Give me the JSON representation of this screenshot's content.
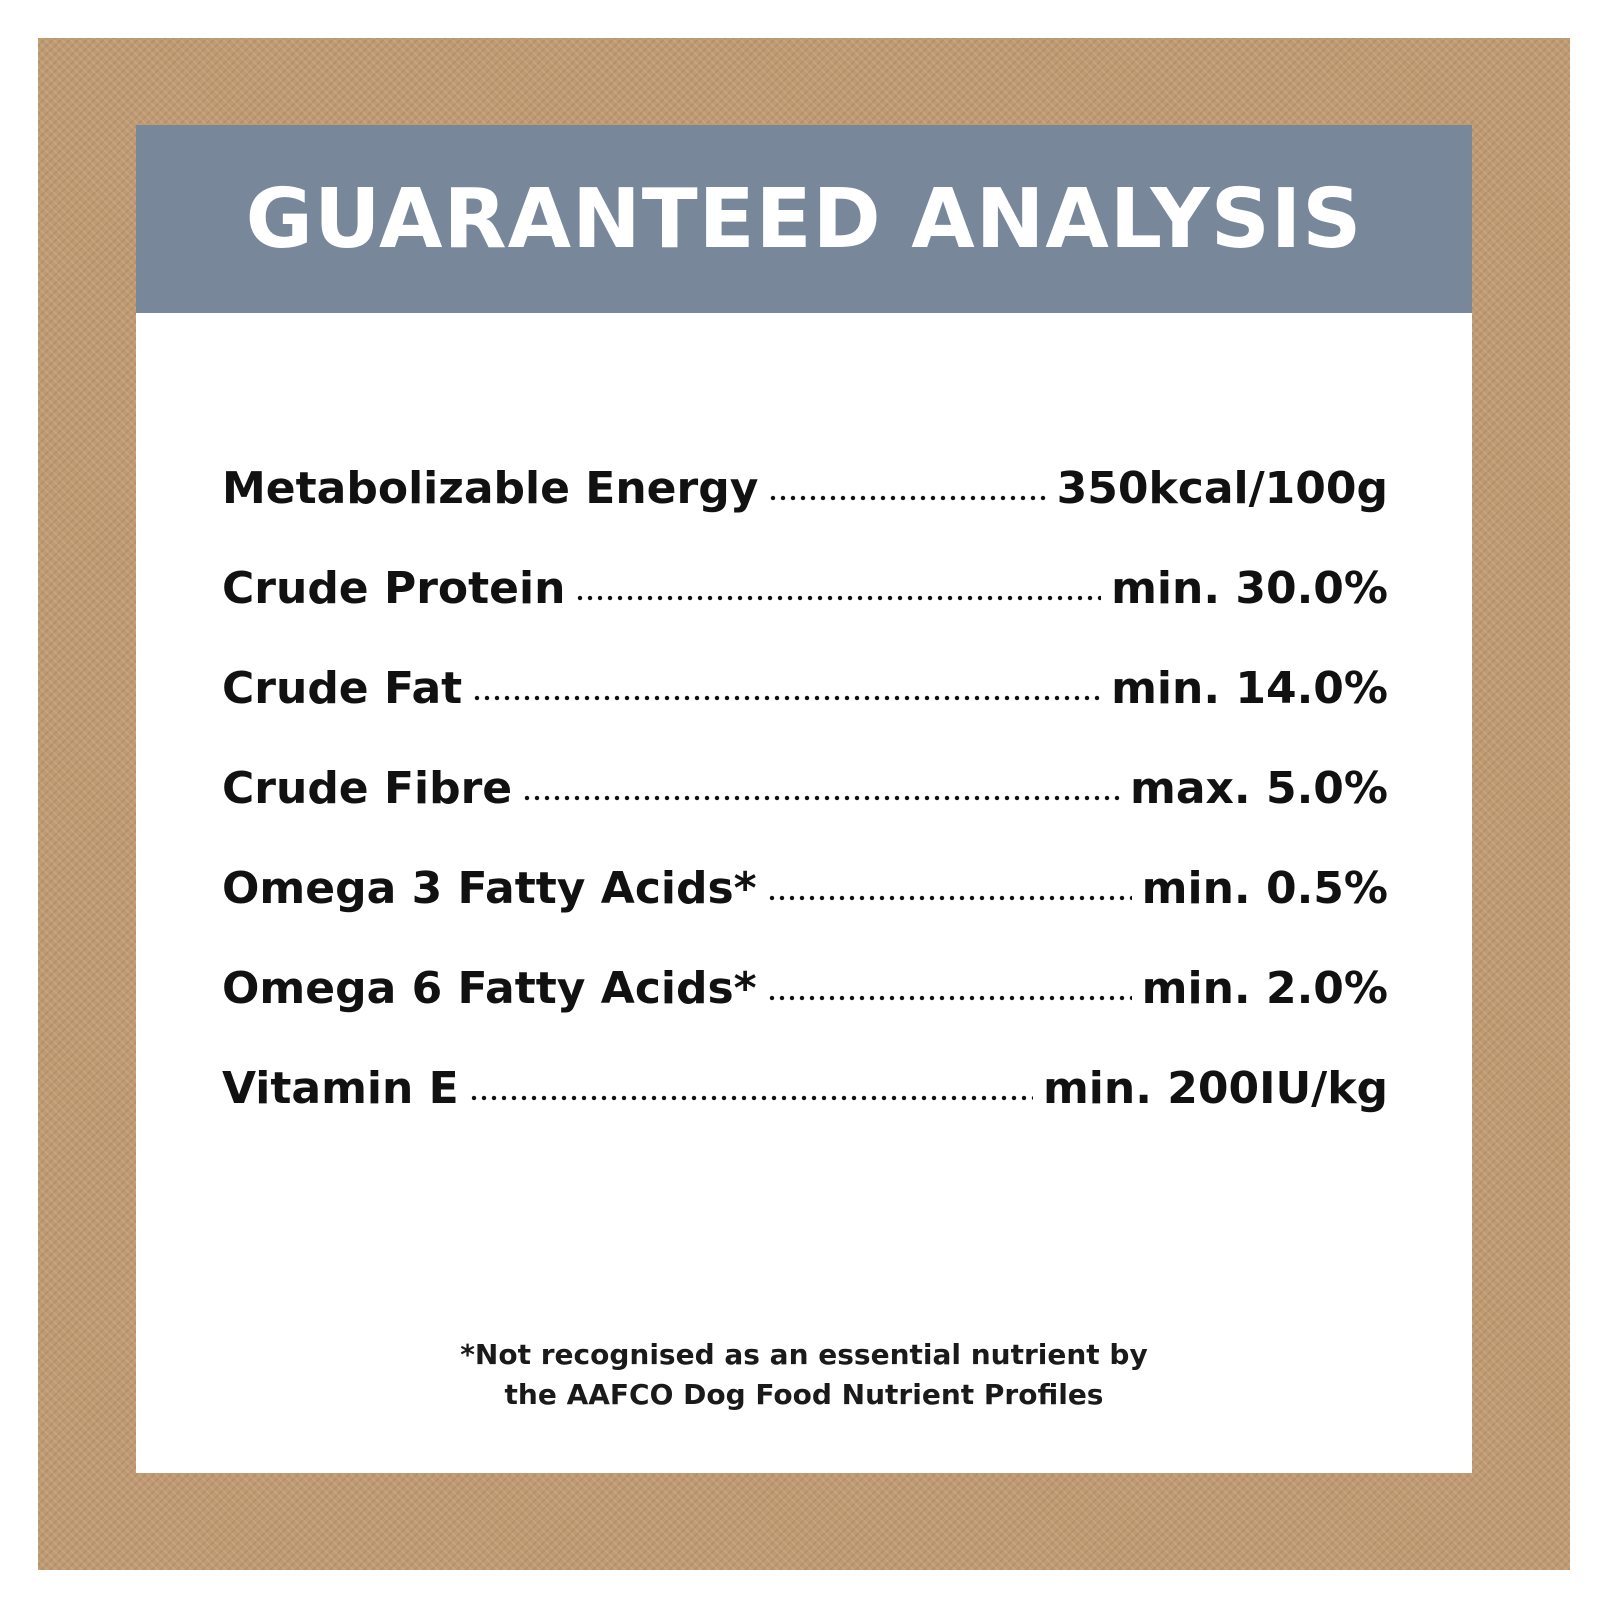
{
  "header": {
    "title": "GUARANTEED ANALYSIS"
  },
  "analysis": {
    "rows": [
      {
        "label": "Metabolizable Energy",
        "value": "350kcal/100g"
      },
      {
        "label": "Crude Protein",
        "value": "min. 30.0%"
      },
      {
        "label": "Crude Fat",
        "value": "min. 14.0%"
      },
      {
        "label": "Crude Fibre",
        "value": "max. 5.0%"
      },
      {
        "label": "Omega 3 Fatty Acids*",
        "value": "min. 0.5%"
      },
      {
        "label": "Omega 6 Fatty Acids*",
        "value": "min. 2.0%"
      },
      {
        "label": "Vitamin E",
        "value": "min. 200IU/kg"
      }
    ]
  },
  "footnote": {
    "line1": "*Not recognised as an essential nutrient by",
    "line2": "the AAFCO Dog Food Nutrient Profiles"
  },
  "colors": {
    "backdrop": "#bf9a72",
    "header_band": "#78889a",
    "card": "#ffffff",
    "text": "#111111"
  }
}
